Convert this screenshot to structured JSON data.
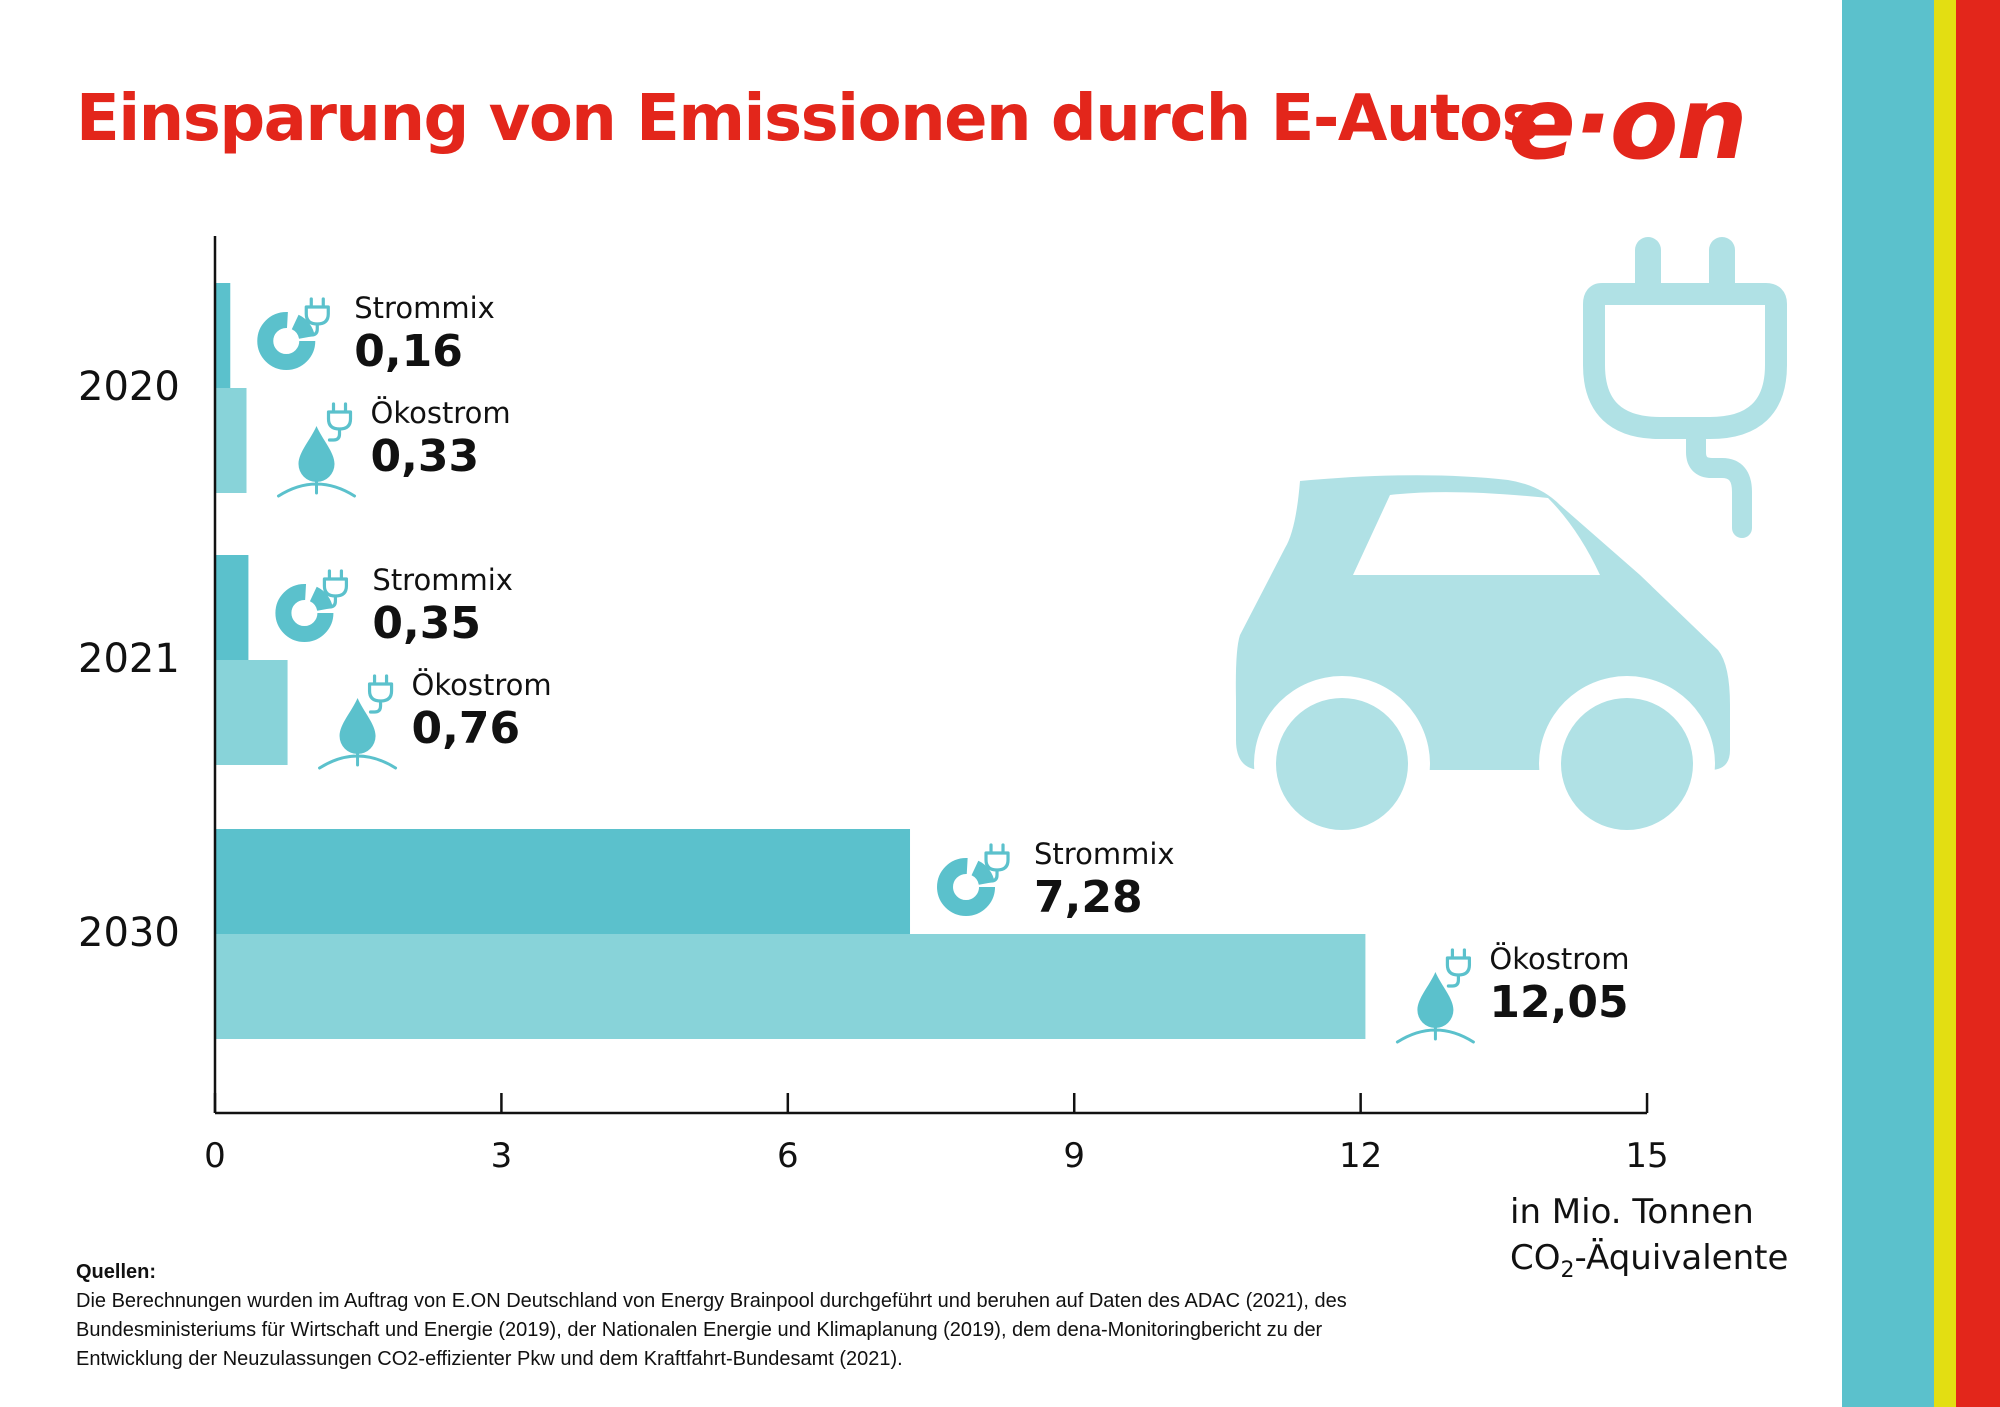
{
  "title": "Einsparung von Emissionen durch E-Autos",
  "logo_text": "e·on",
  "colors": {
    "title_red": "#e3261b",
    "strommix_bar": "#5bc1cc",
    "oekostrom_bar": "#88d3d9",
    "icon": "#5bc1cc",
    "illustration": "#b0e1e5",
    "stripe_teal": "#5bc1cc",
    "stripe_yellow": "#e3de12",
    "stripe_red": "#e3261b"
  },
  "chart_data": {
    "type": "bar",
    "orientation": "horizontal",
    "categories": [
      "2020",
      "2021",
      "2030"
    ],
    "series": [
      {
        "name": "Strommix",
        "values": [
          0.16,
          0.35,
          7.28
        ],
        "labels": [
          "0,16",
          "0,35",
          "7,28"
        ]
      },
      {
        "name": "Ökostrom",
        "values": [
          0.33,
          0.76,
          12.05
        ],
        "labels": [
          "0,33",
          "0,76",
          "12,05"
        ]
      }
    ],
    "xlim": [
      0,
      15
    ],
    "xticks": [
      0,
      3,
      6,
      9,
      12,
      15
    ],
    "xlabel": "in Mio. Tonnen CO2-Äquivalente",
    "grid": false
  },
  "unit_label": {
    "line1": "in Mio. Tonnen",
    "line2_pre": "CO",
    "line2_sub": "2",
    "line2_post": "-Äquivalente"
  },
  "sources": {
    "title": "Quellen:",
    "text": "Die Berechnungen wurden im Auftrag von E.ON Deutschland von Energy Brainpool durchgeführt und beruhen auf Daten des ADAC (2021), des Bundesministeriums für Wirtschaft und Energie (2019), der Nationalen Energie und Klimaplanung (2019), dem dena-Monitoringbericht zu der Entwicklung der Neuzulassungen CO2-effizienter Pkw und dem Kraftfahrt-Bundesamt (2021)."
  },
  "icons": {
    "strommix": "power-mix-donut-plug-icon",
    "oekostrom": "water-drop-plug-icon",
    "illustration": "electric-car-with-plug-icon"
  }
}
